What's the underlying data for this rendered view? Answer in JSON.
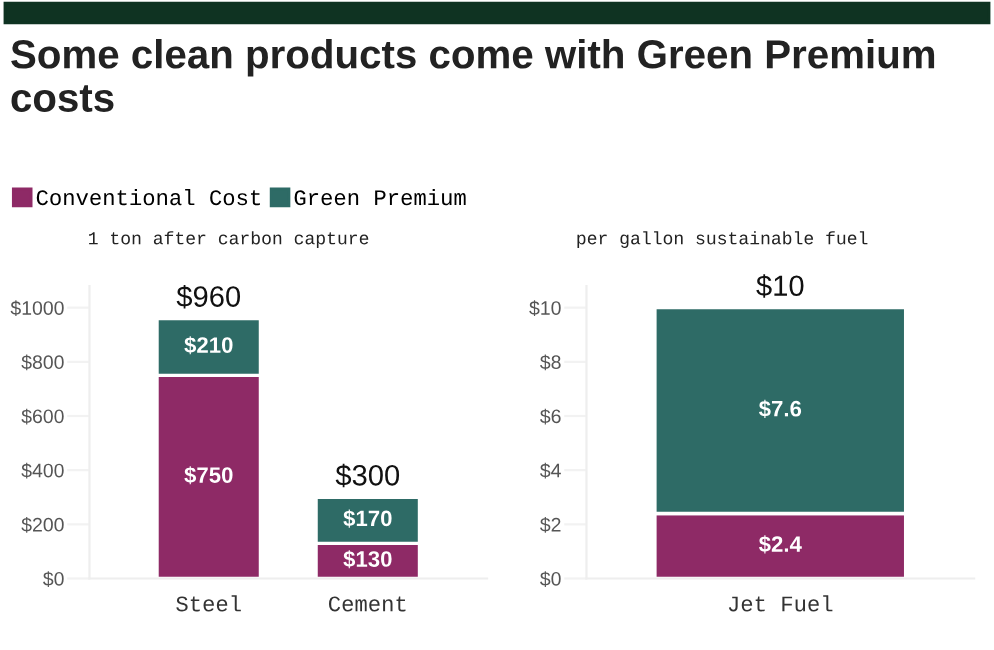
{
  "chart_data": [
    {
      "type": "bar",
      "title": "Some clean products come with Green Premium costs",
      "subtitle": "1 ton after carbon capture",
      "stacked": true,
      "legend": "top left",
      "categories": [
        "Steel",
        "Cement"
      ],
      "series": [
        {
          "name": "Conventional Cost",
          "color": "#8e2a66",
          "values": [
            750,
            130
          ],
          "value_labels": [
            "$750",
            "$130"
          ]
        },
        {
          "name": "Green Premium",
          "color": "#2e6b66",
          "values": [
            210,
            170
          ],
          "value_labels": [
            "$210",
            "$170"
          ]
        }
      ],
      "totals": [
        "$960",
        "$300"
      ],
      "ylim": [
        0,
        1080
      ],
      "yticks": [
        {
          "value": 0,
          "label": "$0"
        },
        {
          "value": 200,
          "label": "$200"
        },
        {
          "value": 400,
          "label": "$400"
        },
        {
          "value": 600,
          "label": "$600"
        },
        {
          "value": 800,
          "label": "$800"
        },
        {
          "value": 1000,
          "label": "$1000"
        }
      ]
    },
    {
      "type": "bar",
      "subtitle": "per gallon sustainable fuel",
      "stacked": true,
      "categories": [
        "Jet Fuel"
      ],
      "series": [
        {
          "color": "#8e2a66",
          "values": [
            2.4
          ],
          "value_labels": [
            "$2.4"
          ]
        },
        {
          "color": "#2e6b66",
          "values": [
            7.6
          ],
          "value_labels": [
            "$7.6"
          ]
        }
      ],
      "totals": [
        "$10"
      ],
      "ylim": [
        0,
        10.8
      ],
      "yticks": [
        {
          "value": 0,
          "label": "$0"
        },
        {
          "value": 2,
          "label": "$2"
        },
        {
          "value": 4,
          "label": "$4"
        },
        {
          "value": 6,
          "label": "$6"
        },
        {
          "value": 8,
          "label": "$8"
        },
        {
          "value": 10,
          "label": "$10"
        }
      ]
    }
  ]
}
